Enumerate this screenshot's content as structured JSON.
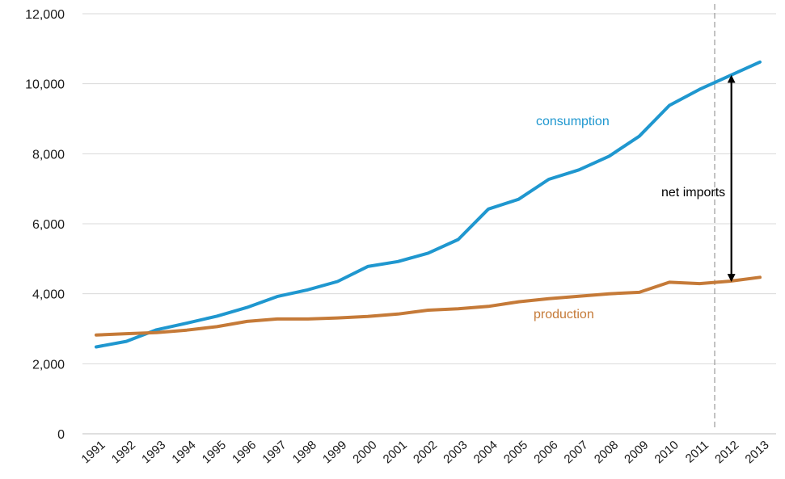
{
  "chart_data": {
    "type": "line",
    "title": "",
    "xlabel": "",
    "ylabel": "",
    "ylim": [
      0,
      12000
    ],
    "yticks": [
      0,
      2000,
      4000,
      6000,
      8000,
      10000,
      12000
    ],
    "ytick_labels": [
      "0",
      "2,000",
      "4,000",
      "6,000",
      "8,000",
      "10,000",
      "12,000"
    ],
    "x": [
      "1991",
      "1992",
      "1993",
      "1994",
      "1995",
      "1996",
      "1997",
      "1998",
      "1999",
      "2000",
      "2001",
      "2002",
      "2003",
      "2004",
      "2005",
      "2006",
      "2007",
      "2008",
      "2009",
      "2010",
      "2011",
      "2012",
      "2013"
    ],
    "grid": "horizontal",
    "series": [
      {
        "name": "consumption",
        "color": "#1f97cf",
        "values": [
          2480,
          2640,
          2970,
          3160,
          3360,
          3610,
          3920,
          4110,
          4350,
          4780,
          4920,
          5160,
          5550,
          6420,
          6700,
          7270,
          7540,
          7930,
          8500,
          9380,
          9840,
          10230,
          10620
        ]
      },
      {
        "name": "production",
        "color": "#c57a38",
        "values": [
          2820,
          2860,
          2890,
          2960,
          3060,
          3210,
          3280,
          3280,
          3310,
          3350,
          3420,
          3530,
          3570,
          3640,
          3770,
          3860,
          3930,
          4000,
          4040,
          4330,
          4290,
          4360,
          4470
        ]
      }
    ],
    "annotations": [
      {
        "text": "net imports",
        "color": "#000000",
        "arrow_year": "2012"
      }
    ],
    "reference_line": {
      "after": "2011",
      "style": "dashed",
      "color": "#999999"
    }
  }
}
